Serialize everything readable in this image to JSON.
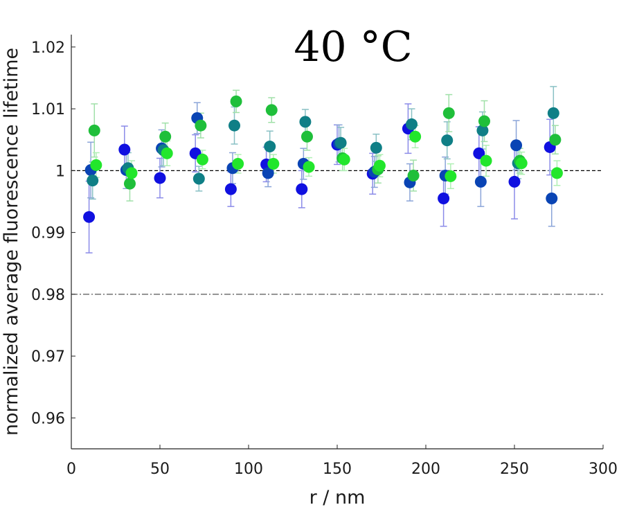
{
  "chart_data": {
    "type": "scatter",
    "title": "40 °C",
    "xlabel": "r / nm",
    "ylabel": "normalized average fluorescence lifetime",
    "xlim": [
      0,
      300
    ],
    "ylim": [
      0.955,
      1.022
    ],
    "xticks": [
      0,
      50,
      100,
      150,
      200,
      250,
      300
    ],
    "xtick_labels": [
      "0",
      "50",
      "100",
      "150",
      "200",
      "250",
      "300"
    ],
    "yticks": [
      0.96,
      0.97,
      0.98,
      0.99,
      1.0,
      1.01,
      1.02
    ],
    "ytick_labels": [
      "0.96",
      "0.97",
      "0.98",
      "0.99",
      "1",
      "1.01",
      "1.02"
    ],
    "reference_lines": [
      {
        "y": 1.0,
        "style": "dashed",
        "color": "#000000"
      },
      {
        "y": 0.98,
        "style": "dash-dot",
        "color": "#555555"
      }
    ],
    "grid": false,
    "series": [
      {
        "color": "#1010e0",
        "error_color": "#8a8ae8",
        "x": [
          10,
          30,
          50,
          70,
          90,
          110,
          130,
          150,
          170,
          190,
          210,
          230,
          250,
          270
        ],
        "y": [
          0.9925,
          1.0034,
          0.9988,
          1.0028,
          0.997,
          1.001,
          0.997,
          1.0042,
          0.9995,
          1.0068,
          0.9955,
          1.0028,
          0.9982,
          1.0038
        ],
        "err": [
          0.0058,
          0.0038,
          0.0032,
          0.003,
          0.0028,
          0.0028,
          0.003,
          0.0032,
          0.0033,
          0.004,
          0.0045,
          0.0043,
          0.006,
          0.0045
        ]
      },
      {
        "color": "#0a44b4",
        "error_color": "#8aa4d8",
        "x": [
          11,
          31,
          51,
          71,
          91,
          111,
          131,
          151,
          171,
          191,
          211,
          231,
          251,
          271
        ],
        "y": [
          1.0001,
          1.0001,
          1.0036,
          1.0085,
          1.0004,
          0.9996,
          1.0011,
          1.0044,
          0.9998,
          0.9981,
          0.9992,
          0.9982,
          1.0041,
          0.9955
        ],
        "err": [
          0.0045,
          0.003,
          0.003,
          0.0025,
          0.0025,
          0.0022,
          0.0025,
          0.003,
          0.0025,
          0.003,
          0.003,
          0.004,
          0.004,
          0.0045
        ]
      },
      {
        "color": "#0f7f86",
        "error_color": "#88c0c4",
        "x": [
          12,
          32,
          52,
          72,
          92,
          112,
          132,
          152,
          172,
          192,
          212,
          232,
          252,
          272
        ],
        "y": [
          0.9984,
          1.0004,
          1.0033,
          0.9987,
          1.0073,
          1.0039,
          1.0079,
          1.0045,
          1.0037,
          1.0075,
          1.0049,
          1.0065,
          1.0012,
          1.0093
        ],
        "err": [
          0.003,
          0.0025,
          0.0025,
          0.002,
          0.003,
          0.0025,
          0.002,
          0.0025,
          0.0022,
          0.0025,
          0.003,
          0.003,
          0.0025,
          0.0043
        ]
      },
      {
        "color": "#1fbf3a",
        "error_color": "#a0e0a8",
        "x": [
          13,
          33,
          53,
          73,
          93,
          113,
          133,
          153,
          173,
          193,
          213,
          233,
          253,
          273
        ],
        "y": [
          1.0065,
          0.9979,
          1.0055,
          1.0073,
          1.0112,
          1.0098,
          1.0055,
          1.002,
          1.0002,
          0.9992,
          1.0093,
          1.008,
          1.0016,
          1.005
        ],
        "err": [
          0.0043,
          0.0028,
          0.0022,
          0.002,
          0.0018,
          0.002,
          0.0022,
          0.002,
          0.0022,
          0.0025,
          0.003,
          0.0033,
          0.002,
          0.0023
        ]
      },
      {
        "color": "#22e62c",
        "error_color": "#b0f0b4",
        "x": [
          14,
          34,
          54,
          74,
          94,
          114,
          134,
          154,
          174,
          194,
          214,
          234,
          254,
          274
        ],
        "y": [
          1.0009,
          0.9996,
          1.0028,
          1.0018,
          1.0011,
          1.0011,
          1.0006,
          1.0018,
          1.0008,
          1.0055,
          0.9991,
          1.0016,
          1.0012,
          0.9996
        ],
        "err": [
          0.002,
          0.002,
          0.002,
          0.0015,
          0.0015,
          0.0015,
          0.0015,
          0.0018,
          0.0018,
          0.0018,
          0.002,
          0.0025,
          0.0018,
          0.002
        ]
      }
    ]
  }
}
